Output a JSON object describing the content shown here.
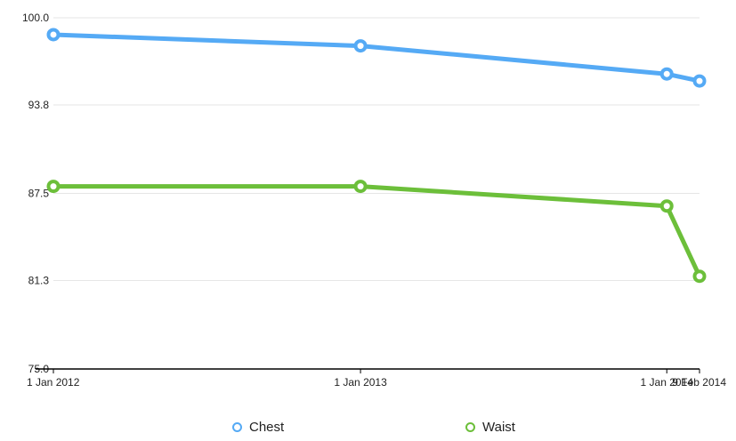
{
  "chart_data": {
    "type": "line",
    "title": "",
    "xlabel": "",
    "ylabel": "",
    "x": [
      "1 Jan 2012",
      "1 Jan 2013",
      "1 Jan 2014",
      "9 Feb 2014"
    ],
    "x_dates": [
      "2012-01-01",
      "2013-01-01",
      "2014-01-01",
      "2014-02-09"
    ],
    "ylim": [
      75.0,
      100.0
    ],
    "yticks": [
      "75.0",
      "81.3",
      "87.5",
      "93.8",
      "100.0"
    ],
    "ytick_values": [
      75.0,
      81.3,
      87.5,
      93.8,
      100.0
    ],
    "grid": true,
    "legend": "bottom",
    "series": [
      {
        "name": "Chest",
        "color": "#55aaf5",
        "values": [
          98.8,
          98.0,
          96.0,
          95.5
        ]
      },
      {
        "name": "Waist",
        "color": "#6cbf3a",
        "values": [
          88.0,
          88.0,
          86.6,
          81.6
        ]
      }
    ]
  }
}
